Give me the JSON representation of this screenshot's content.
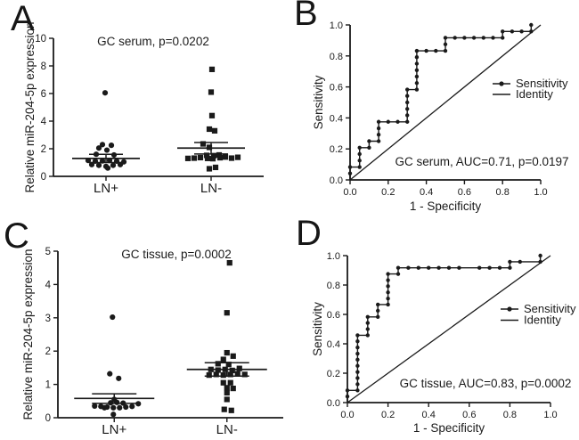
{
  "figure": {
    "background": "#ffffff",
    "ink": "#1a1a1a"
  },
  "chart_data": [
    {
      "type": "scatter",
      "panel_letter": "A",
      "title": "GC serum, p=0.0202",
      "ylabel": "Relative miR-204-5p expression",
      "xlabel": "",
      "ylim": [
        0,
        10
      ],
      "yticks": [
        0,
        2,
        4,
        6,
        8,
        10
      ],
      "ytick_labels": [
        "0",
        "2",
        "4",
        "6",
        "8",
        "10"
      ],
      "categories": [
        "LN+",
        "LN-"
      ],
      "grid": false,
      "groups": [
        {
          "label": "LN+",
          "marker": "circle",
          "mean": 1.3,
          "sem_upper": 1.6,
          "sem_lower": 1.0,
          "points": [
            [
              -1,
              6.05
            ],
            [
              -4,
              2.3
            ],
            [
              6,
              2.25
            ],
            [
              -8,
              2.05
            ],
            [
              1,
              1.9
            ],
            [
              -11,
              1.6
            ],
            [
              9,
              1.55
            ],
            [
              -20,
              1.15
            ],
            [
              -12,
              1.1
            ],
            [
              -4,
              1.12
            ],
            [
              4,
              1.15
            ],
            [
              12,
              1.1
            ],
            [
              20,
              1.05
            ],
            [
              -16,
              0.85
            ],
            [
              -8,
              0.8
            ],
            [
              0,
              0.72
            ],
            [
              8,
              0.8
            ],
            [
              16,
              0.85
            ],
            [
              2,
              0.6
            ]
          ]
        },
        {
          "label": "LN-",
          "marker": "square",
          "mean": 2.05,
          "sem_upper": 2.45,
          "sem_lower": 1.62,
          "points": [
            [
              1,
              7.75
            ],
            [
              0,
              6.1
            ],
            [
              1,
              4.4
            ],
            [
              -2,
              3.42
            ],
            [
              4,
              3.3
            ],
            [
              -9,
              2.35
            ],
            [
              -2,
              2.1
            ],
            [
              -26,
              1.3
            ],
            [
              -19,
              1.32
            ],
            [
              -12,
              1.36
            ],
            [
              -5,
              1.52
            ],
            [
              -4,
              1.3
            ],
            [
              3,
              1.5
            ],
            [
              2,
              1.28
            ],
            [
              9,
              1.55
            ],
            [
              10,
              1.35
            ],
            [
              16,
              1.4
            ],
            [
              23,
              1.32
            ],
            [
              30,
              1.38
            ],
            [
              -2,
              0.55
            ],
            [
              5,
              0.65
            ]
          ]
        }
      ]
    },
    {
      "type": "line",
      "panel_letter": "B",
      "annotation": "GC serum, AUC=0.71, p=0.0197",
      "auc": 0.71,
      "p_value": "0.0197",
      "xlabel": "1 - Specificity",
      "ylabel": "Sensitivity",
      "xlim": [
        0,
        1
      ],
      "ylim": [
        0,
        1
      ],
      "xticks": [
        0,
        0.2,
        0.4,
        0.6,
        0.8,
        1.0
      ],
      "xtick_labels": [
        "0.0",
        "0.2",
        "0.4",
        "0.6",
        "0.8",
        "1.0"
      ],
      "yticks": [
        0,
        0.2,
        0.4,
        0.6,
        0.8,
        1.0
      ],
      "ytick_labels": [
        "0.0",
        "0.2",
        "0.4",
        "0.6",
        "0.8",
        "1.0"
      ],
      "legend": [
        {
          "label": "Sensitivity",
          "style": "line-dot"
        },
        {
          "label": "Identity",
          "style": "line"
        }
      ],
      "identity": [
        [
          0,
          0
        ],
        [
          1,
          1
        ]
      ],
      "roc_vertices": [
        [
          0,
          0
        ],
        [
          0,
          0.083
        ],
        [
          0.05,
          0.083
        ],
        [
          0.05,
          0.208
        ],
        [
          0.1,
          0.208
        ],
        [
          0.1,
          0.25
        ],
        [
          0.15,
          0.25
        ],
        [
          0.15,
          0.375
        ],
        [
          0.3,
          0.375
        ],
        [
          0.3,
          0.583
        ],
        [
          0.35,
          0.583
        ],
        [
          0.35,
          0.833
        ],
        [
          0.5,
          0.833
        ],
        [
          0.5,
          0.917
        ],
        [
          0.8,
          0.917
        ],
        [
          0.8,
          0.958
        ],
        [
          0.95,
          0.958
        ],
        [
          0.95,
          1.0
        ]
      ],
      "roc_markers": [
        [
          0,
          0.042
        ],
        [
          0,
          0.083
        ],
        [
          0.05,
          0.083
        ],
        [
          0.05,
          0.125
        ],
        [
          0.05,
          0.167
        ],
        [
          0.05,
          0.208
        ],
        [
          0.1,
          0.208
        ],
        [
          0.1,
          0.25
        ],
        [
          0.15,
          0.25
        ],
        [
          0.15,
          0.292
        ],
        [
          0.15,
          0.333
        ],
        [
          0.15,
          0.375
        ],
        [
          0.2,
          0.375
        ],
        [
          0.25,
          0.375
        ],
        [
          0.3,
          0.375
        ],
        [
          0.3,
          0.417
        ],
        [
          0.3,
          0.458
        ],
        [
          0.3,
          0.5
        ],
        [
          0.3,
          0.542
        ],
        [
          0.3,
          0.583
        ],
        [
          0.35,
          0.583
        ],
        [
          0.35,
          0.625
        ],
        [
          0.35,
          0.667
        ],
        [
          0.35,
          0.708
        ],
        [
          0.35,
          0.75
        ],
        [
          0.35,
          0.792
        ],
        [
          0.35,
          0.833
        ],
        [
          0.4,
          0.833
        ],
        [
          0.45,
          0.833
        ],
        [
          0.5,
          0.833
        ],
        [
          0.5,
          0.875
        ],
        [
          0.5,
          0.917
        ],
        [
          0.55,
          0.917
        ],
        [
          0.6,
          0.917
        ],
        [
          0.65,
          0.917
        ],
        [
          0.7,
          0.917
        ],
        [
          0.75,
          0.917
        ],
        [
          0.8,
          0.917
        ],
        [
          0.8,
          0.958
        ],
        [
          0.85,
          0.958
        ],
        [
          0.9,
          0.958
        ],
        [
          0.95,
          0.958
        ],
        [
          0.95,
          1.0
        ]
      ]
    },
    {
      "type": "scatter",
      "panel_letter": "C",
      "title": "GC tissue, p=0.0002",
      "ylabel": "Relative miR-204-5p expression",
      "xlabel": "",
      "ylim": [
        0,
        5
      ],
      "yticks": [
        0,
        1,
        2,
        3,
        4,
        5
      ],
      "ytick_labels": [
        "0",
        "1",
        "2",
        "3",
        "4",
        "5"
      ],
      "categories": [
        "LN+",
        "LN-"
      ],
      "grid": false,
      "groups": [
        {
          "label": "LN+",
          "marker": "circle",
          "mean": 0.58,
          "sem_upper": 0.72,
          "sem_lower": 0.43,
          "points": [
            [
              -2,
              3.02
            ],
            [
              -5,
              1.32
            ],
            [
              5,
              1.18
            ],
            [
              -22,
              0.35
            ],
            [
              -15,
              0.34
            ],
            [
              -11,
              0.3
            ],
            [
              -8,
              0.32
            ],
            [
              -1,
              0.3
            ],
            [
              6,
              0.3
            ],
            [
              13,
              0.32
            ],
            [
              20,
              0.34
            ],
            [
              27,
              0.42
            ],
            [
              -4,
              0.45
            ],
            [
              3,
              0.46
            ],
            [
              10,
              0.44
            ],
            [
              0,
              0.55
            ],
            [
              -1,
              0.1
            ]
          ]
        },
        {
          "label": "LN-",
          "marker": "square",
          "mean": 1.45,
          "sem_upper": 1.65,
          "sem_lower": 1.25,
          "points": [
            [
              3,
              4.65
            ],
            [
              0,
              3.15
            ],
            [
              0,
              1.95
            ],
            [
              7,
              1.85
            ],
            [
              -4,
              1.75
            ],
            [
              -10,
              1.62
            ],
            [
              2,
              1.6
            ],
            [
              -18,
              1.45
            ],
            [
              -10,
              1.43
            ],
            [
              -2,
              1.45
            ],
            [
              6,
              1.42
            ],
            [
              14,
              1.48
            ],
            [
              -20,
              1.28
            ],
            [
              -12,
              1.3
            ],
            [
              -4,
              1.28
            ],
            [
              4,
              1.3
            ],
            [
              12,
              1.32
            ],
            [
              20,
              1.3
            ],
            [
              -4,
              1.05
            ],
            [
              4,
              1.05
            ],
            [
              0,
              0.9
            ],
            [
              7,
              0.88
            ],
            [
              0,
              0.75
            ],
            [
              0,
              0.55
            ],
            [
              -3,
              0.25
            ],
            [
              5,
              0.22
            ]
          ]
        }
      ]
    },
    {
      "type": "line",
      "panel_letter": "D",
      "annotation": "GC tissue, AUC=0.83, p=0.0002",
      "auc": 0.83,
      "p_value": "0.0002",
      "xlabel": "1 - Specificity",
      "ylabel": "Sensitivity",
      "xlim": [
        0,
        1
      ],
      "ylim": [
        0,
        1
      ],
      "xticks": [
        0,
        0.2,
        0.4,
        0.6,
        0.8,
        1.0
      ],
      "xtick_labels": [
        "0.0",
        "0.2",
        "0.4",
        "0.6",
        "0.8",
        "1.0"
      ],
      "yticks": [
        0,
        0.2,
        0.4,
        0.6,
        0.8,
        1.0
      ],
      "ytick_labels": [
        "0.0",
        "0.2",
        "0.4",
        "0.6",
        "0.8",
        "1.0"
      ],
      "legend": [
        {
          "label": "Sensitivity",
          "style": "line-dot"
        },
        {
          "label": "Identity",
          "style": "line"
        }
      ],
      "identity": [
        [
          0,
          0
        ],
        [
          1,
          1
        ]
      ],
      "roc_vertices": [
        [
          0,
          0
        ],
        [
          0,
          0.083
        ],
        [
          0.05,
          0.083
        ],
        [
          0.05,
          0.458
        ],
        [
          0.1,
          0.458
        ],
        [
          0.1,
          0.583
        ],
        [
          0.15,
          0.583
        ],
        [
          0.15,
          0.667
        ],
        [
          0.2,
          0.667
        ],
        [
          0.2,
          0.875
        ],
        [
          0.25,
          0.875
        ],
        [
          0.25,
          0.917
        ],
        [
          0.8,
          0.917
        ],
        [
          0.8,
          0.958
        ],
        [
          0.95,
          0.958
        ],
        [
          0.95,
          1.0
        ]
      ],
      "roc_markers": [
        [
          0,
          0.042
        ],
        [
          0,
          0.083
        ],
        [
          0.05,
          0.083
        ],
        [
          0.05,
          0.125
        ],
        [
          0.05,
          0.167
        ],
        [
          0.05,
          0.208
        ],
        [
          0.05,
          0.25
        ],
        [
          0.05,
          0.292
        ],
        [
          0.05,
          0.333
        ],
        [
          0.05,
          0.375
        ],
        [
          0.05,
          0.417
        ],
        [
          0.05,
          0.458
        ],
        [
          0.1,
          0.458
        ],
        [
          0.1,
          0.5
        ],
        [
          0.1,
          0.542
        ],
        [
          0.1,
          0.583
        ],
        [
          0.15,
          0.583
        ],
        [
          0.15,
          0.625
        ],
        [
          0.15,
          0.667
        ],
        [
          0.2,
          0.667
        ],
        [
          0.2,
          0.708
        ],
        [
          0.2,
          0.75
        ],
        [
          0.2,
          0.792
        ],
        [
          0.2,
          0.833
        ],
        [
          0.2,
          0.875
        ],
        [
          0.25,
          0.875
        ],
        [
          0.25,
          0.917
        ],
        [
          0.3,
          0.917
        ],
        [
          0.35,
          0.917
        ],
        [
          0.4,
          0.917
        ],
        [
          0.45,
          0.917
        ],
        [
          0.5,
          0.917
        ],
        [
          0.55,
          0.917
        ],
        [
          0.65,
          0.917
        ],
        [
          0.7,
          0.917
        ],
        [
          0.75,
          0.917
        ],
        [
          0.8,
          0.917
        ],
        [
          0.8,
          0.958
        ],
        [
          0.85,
          0.958
        ],
        [
          0.95,
          0.958
        ],
        [
          0.95,
          1.0
        ]
      ]
    }
  ]
}
